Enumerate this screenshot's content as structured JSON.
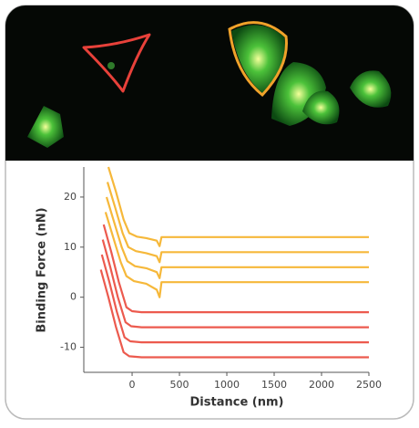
{
  "chart_data": {
    "type": "line",
    "xlabel": "Distance (nm)",
    "ylabel": "Binding Force (nN)",
    "xlim": [
      -510,
      2500
    ],
    "ylim": [
      -15,
      26
    ],
    "xticks": [
      0,
      500,
      1000,
      1500,
      2000,
      2500
    ],
    "yticks": [
      20,
      10,
      0,
      -10
    ],
    "series": [
      {
        "color": "#f6b83a",
        "x": [
          -250,
          -170,
          -90,
          -30,
          50,
          150,
          260,
          290,
          310,
          2500
        ],
        "values": [
          26,
          21,
          15.5,
          12.8,
          12.1,
          11.8,
          11.3,
          10.2,
          12,
          12
        ]
      },
      {
        "color": "#f6b83a",
        "x": [
          -260,
          -180,
          -100,
          -40,
          40,
          150,
          260,
          290,
          310,
          2500
        ],
        "values": [
          23,
          18,
          12.8,
          10,
          9.2,
          8.8,
          8.2,
          7,
          9,
          9
        ]
      },
      {
        "color": "#f6b83a",
        "x": [
          -270,
          -190,
          -110,
          -50,
          30,
          150,
          260,
          290,
          310,
          2500
        ],
        "values": [
          20,
          15,
          10,
          7.2,
          6.2,
          5.8,
          5,
          3.8,
          6,
          6
        ]
      },
      {
        "color": "#f6b83a",
        "x": [
          -280,
          -200,
          -120,
          -60,
          20,
          150,
          260,
          290,
          310,
          2500
        ],
        "values": [
          17,
          12,
          7,
          4.2,
          3.2,
          2.7,
          1.5,
          0,
          3,
          3
        ]
      },
      {
        "color": "#ec5a4e",
        "x": [
          -300,
          -220,
          -140,
          -60,
          0,
          100,
          2500
        ],
        "values": [
          14.5,
          9,
          3,
          -2,
          -2.8,
          -3,
          -3
        ]
      },
      {
        "color": "#ec5a4e",
        "x": [
          -310,
          -230,
          -150,
          -70,
          -10,
          100,
          2500
        ],
        "values": [
          11.5,
          6,
          0,
          -5,
          -5.8,
          -6,
          -6
        ]
      },
      {
        "color": "#ec5a4e",
        "x": [
          -320,
          -240,
          -160,
          -80,
          -20,
          100,
          2500
        ],
        "values": [
          8.5,
          3,
          -3,
          -8,
          -8.8,
          -9,
          -9
        ]
      },
      {
        "color": "#ec5a4e",
        "x": [
          -330,
          -250,
          -170,
          -90,
          -30,
          100,
          2500
        ],
        "values": [
          5.5,
          0,
          -6,
          -11,
          -11.8,
          -12,
          -12
        ]
      }
    ]
  }
}
